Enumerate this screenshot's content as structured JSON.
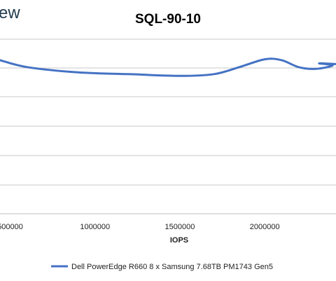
{
  "logo": {
    "text": "ew"
  },
  "chart_data": {
    "type": "line",
    "title": "SQL-90-10",
    "xlabel": "IOPS",
    "ylabel": "",
    "x_ticks": [
      500000,
      1000000,
      1500000,
      2000000
    ],
    "x_tick_labels": [
      "500000",
      "1000000",
      "1500000",
      "2000000"
    ],
    "grid": true,
    "legend_position": "bottom",
    "series": [
      {
        "name": "Dell PowerEdge R660 8 x Samsung 7.68TB PM1743 Gen5",
        "color": "#4472c4",
        "points": [
          {
            "x": 440000,
            "y": 0.88
          },
          {
            "x": 600000,
            "y": 0.84
          },
          {
            "x": 900000,
            "y": 0.81
          },
          {
            "x": 1200000,
            "y": 0.8
          },
          {
            "x": 1500000,
            "y": 0.79
          },
          {
            "x": 1700000,
            "y": 0.8
          },
          {
            "x": 1850000,
            "y": 0.84
          },
          {
            "x": 2000000,
            "y": 0.885
          },
          {
            "x": 2100000,
            "y": 0.88
          },
          {
            "x": 2200000,
            "y": 0.84
          },
          {
            "x": 2300000,
            "y": 0.83
          },
          {
            "x": 2400000,
            "y": 0.85
          },
          {
            "x": 2320000,
            "y": 0.862
          },
          {
            "x": 2420000,
            "y": 0.858
          }
        ]
      }
    ]
  }
}
